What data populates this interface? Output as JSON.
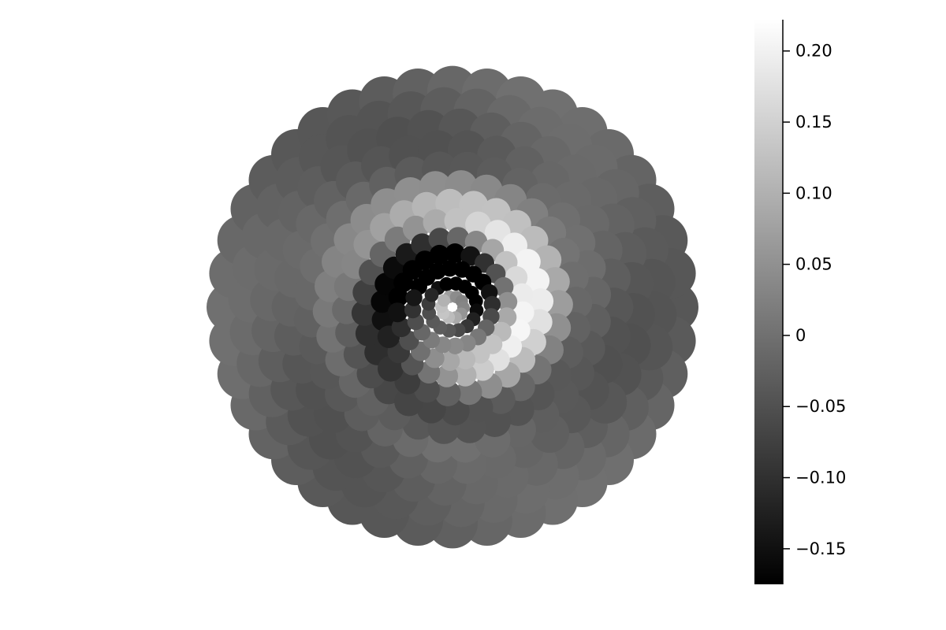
{
  "chart_data": {
    "type": "scatter",
    "title": "",
    "xlabel": "",
    "ylabel": "",
    "axes_visible": false,
    "grid": false,
    "legend": "none",
    "colormap": "grayscale",
    "colorbar": {
      "position": "right",
      "range": [
        -0.175,
        0.222
      ],
      "ticks": [
        -0.15,
        -0.1,
        -0.05,
        0,
        0.05,
        0.1,
        0.15,
        0.2
      ],
      "tick_labels": [
        "−0.15",
        "−0.10",
        "−0.05",
        "0",
        "0.05",
        "0.10",
        "0.15",
        "0.20"
      ]
    },
    "description_of_points": "Concentric rings of discs forming a spiral wave pattern; outer ring values near -0.02, inner region with bright arc (~0.2) and dark arcs (~-0.17)",
    "rings": [
      {
        "radius": 1.0,
        "count": 40,
        "value": -0.02
      },
      {
        "radius": 0.91,
        "count": 38,
        "value": -0.025
      },
      {
        "radius": 0.82,
        "count": 36,
        "value": -0.03
      },
      {
        "radius": 0.73,
        "count": 34,
        "value": -0.03
      },
      {
        "radius": 0.64,
        "count": 32,
        "value": -0.02
      },
      {
        "radius": 0.56,
        "count": 30,
        "value": 0.0
      },
      {
        "radius": 0.48,
        "count": 28,
        "value": 0.03
      },
      {
        "radius": 0.4,
        "count": 26,
        "value": 0.05
      },
      {
        "radius": 0.32,
        "count": 24,
        "value": 0.02
      },
      {
        "radius": 0.25,
        "count": 22,
        "value": -0.05
      },
      {
        "radius": 0.18,
        "count": 20,
        "value": -0.1
      },
      {
        "radius": 0.11,
        "count": 16,
        "value": -0.12
      },
      {
        "radius": 0.05,
        "count": 10,
        "value": 0.08
      }
    ]
  }
}
